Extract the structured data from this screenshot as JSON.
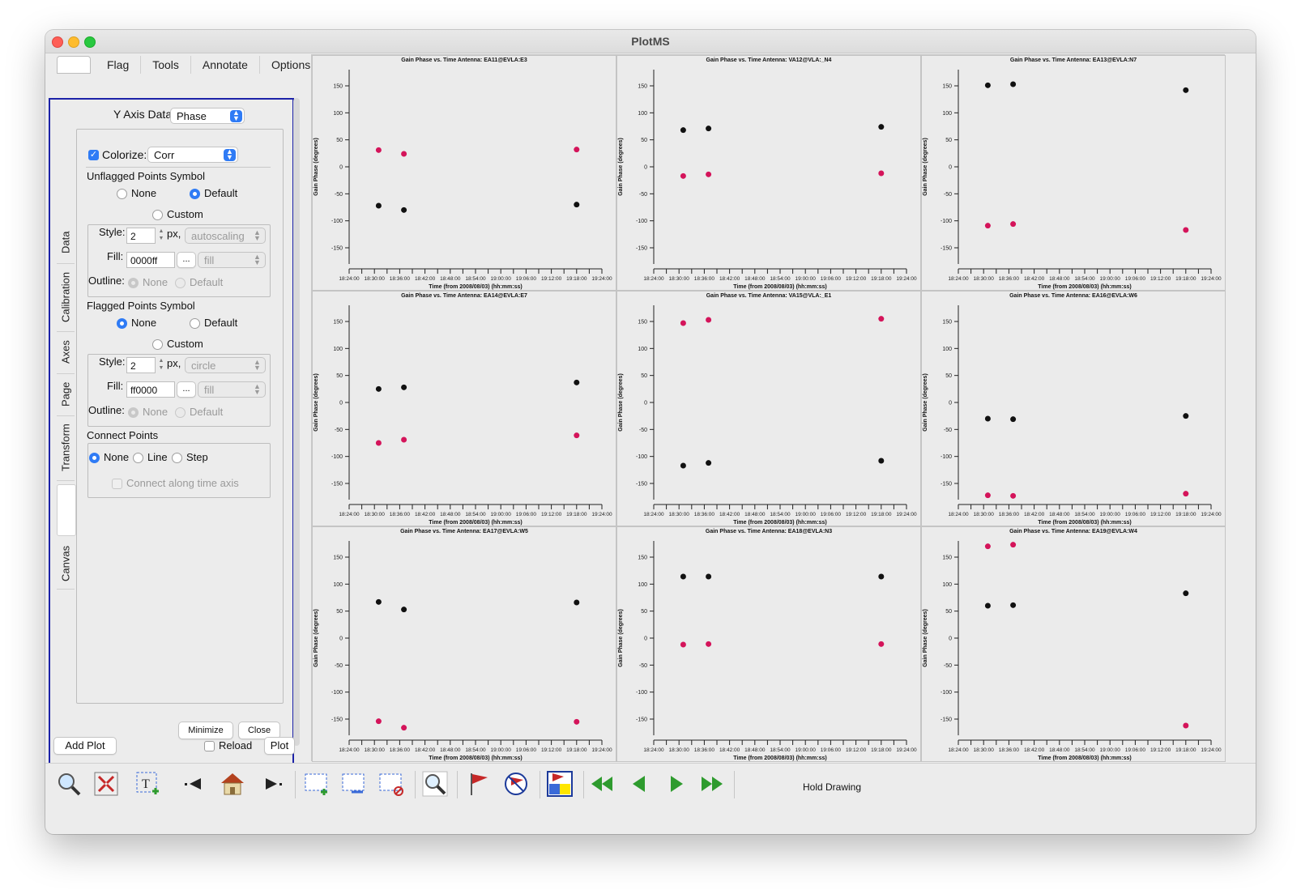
{
  "window": {
    "title": "PlotMS"
  },
  "menu": {
    "tabs": [
      "Flag",
      "Tools",
      "Annotate",
      "Options"
    ]
  },
  "side_tabs": [
    "Data",
    "Calibration",
    "Axes",
    "Page",
    "Transform",
    "Canvas"
  ],
  "panel": {
    "yaxis_label": "Y Axis Data:",
    "yaxis_value": "Phase",
    "colorize_checked": true,
    "colorize_label": "Colorize:",
    "colorize_value": "Corr",
    "unflagged": {
      "title": "Unflagged Points Symbol",
      "options": [
        "None",
        "Default",
        "Custom"
      ],
      "selected": "Default",
      "style_label": "Style:",
      "style_value": "2",
      "px_label": "px,",
      "shape_value": "autoscaling",
      "fill_label": "Fill:",
      "fill_value": "0000ff",
      "fill_btn": "...",
      "fill_style": "fill",
      "outline_label": "Outline:",
      "outline_none": "None",
      "outline_default": "Default"
    },
    "flagged": {
      "title": "Flagged Points Symbol",
      "options": [
        "None",
        "Default",
        "Custom"
      ],
      "selected": "None",
      "style_label": "Style:",
      "style_value": "2",
      "px_label": "px,",
      "shape_value": "circle",
      "fill_label": "Fill:",
      "fill_value": "ff0000",
      "fill_btn": "...",
      "fill_style": "fill",
      "outline_label": "Outline:",
      "outline_none": "None",
      "outline_default": "Default"
    },
    "connect": {
      "title": "Connect Points",
      "options": [
        "None",
        "Line",
        "Step"
      ],
      "selected": "None",
      "along_label": "Connect along time axis"
    },
    "minimize": "Minimize",
    "close": "Close",
    "add_plot": "Add Plot",
    "reload": "Reload",
    "plot": "Plot"
  },
  "toolbar": {
    "icons": [
      "zoom-icon",
      "pan-icon",
      "annotate-text-icon",
      "step-back-icon",
      "home-icon",
      "step-forward-icon",
      "mark-region-icon",
      "subtract-region-icon",
      "clear-regions-icon",
      "inspect-icon",
      "flag-icon",
      "unflag-icon",
      "flag-all-icon",
      "first-page-icon",
      "prev-page-icon",
      "next-page-icon",
      "last-page-icon"
    ],
    "hold_label": "Hold Drawing"
  },
  "colors": {
    "black_series": "#111111",
    "magenta_series": "#d4145a",
    "frame": "#1c22a8",
    "accent": "#2f7bf5"
  },
  "chart_data": {
    "type": "scatter",
    "grid": "3x3",
    "x_ticks": [
      "18:24:00",
      "18:30:00",
      "18:36:00",
      "18:42:00",
      "18:48:00",
      "18:54:00",
      "19:00:00",
      "19:06:00",
      "19:12:00",
      "19:18:00",
      "19:24:00"
    ],
    "x_times": [
      "18:31:00",
      "18:37:00",
      "19:18:00"
    ],
    "xlabel": "Time (from 2008/08/03) (hh:mm:ss)",
    "ylabel": "Gain Phase (degrees)",
    "y_ticks": [
      150,
      100,
      50,
      0,
      -50,
      -100,
      -150
    ],
    "ylim": [
      -180,
      180
    ],
    "panels": [
      {
        "title": "Gain Phase vs. Time Antenna: EA11@EVLA:E3",
        "series": [
          {
            "color": "#d4145a",
            "values": [
              31,
              24,
              32
            ]
          },
          {
            "color": "#111111",
            "values": [
              -72,
              -80,
              -70
            ]
          }
        ]
      },
      {
        "title": "Gain Phase vs. Time Antenna: VA12@VLA:_N4",
        "series": [
          {
            "color": "#111111",
            "values": [
              68,
              71,
              74
            ]
          },
          {
            "color": "#d4145a",
            "values": [
              -17,
              -14,
              -12
            ]
          }
        ]
      },
      {
        "title": "Gain Phase vs. Time Antenna: EA13@EVLA:N7",
        "series": [
          {
            "color": "#111111",
            "values": [
              151,
              153,
              142
            ]
          },
          {
            "color": "#d4145a",
            "values": [
              -109,
              -106,
              -117
            ]
          }
        ]
      },
      {
        "title": "Gain Phase vs. Time Antenna: EA14@EVLA:E7",
        "series": [
          {
            "color": "#111111",
            "values": [
              25,
              28,
              37
            ]
          },
          {
            "color": "#d4145a",
            "values": [
              -75,
              -69,
              -61
            ]
          }
        ]
      },
      {
        "title": "Gain Phase vs. Time Antenna: VA15@VLA:_E1",
        "series": [
          {
            "color": "#d4145a",
            "values": [
              147,
              153,
              155
            ]
          },
          {
            "color": "#111111",
            "values": [
              -117,
              -112,
              -108
            ]
          }
        ]
      },
      {
        "title": "Gain Phase vs. Time Antenna: EA16@EVLA:W6",
        "series": [
          {
            "color": "#111111",
            "values": [
              -30,
              -31,
              -25
            ]
          },
          {
            "color": "#d4145a",
            "values": [
              -172,
              -173,
              -169
            ]
          }
        ]
      },
      {
        "title": "Gain Phase vs. Time Antenna: EA17@EVLA:W5",
        "series": [
          {
            "color": "#111111",
            "values": [
              67,
              53,
              66
            ]
          },
          {
            "color": "#d4145a",
            "values": [
              -154,
              -166,
              -155
            ]
          }
        ]
      },
      {
        "title": "Gain Phase vs. Time Antenna: EA18@EVLA:N3",
        "series": [
          {
            "color": "#111111",
            "values": [
              114,
              114,
              114
            ]
          },
          {
            "color": "#d4145a",
            "values": [
              -12,
              -11,
              -11
            ]
          }
        ]
      },
      {
        "title": "Gain Phase vs. Time Antenna: EA19@EVLA:W4",
        "series": [
          {
            "color": "#d4145a",
            "values": [
              170,
              173,
              null
            ]
          },
          {
            "color": "#111111",
            "values": [
              60,
              61,
              83
            ]
          },
          {
            "color": "#d4145a",
            "values": [
              null,
              null,
              -162
            ]
          }
        ]
      }
    ]
  }
}
